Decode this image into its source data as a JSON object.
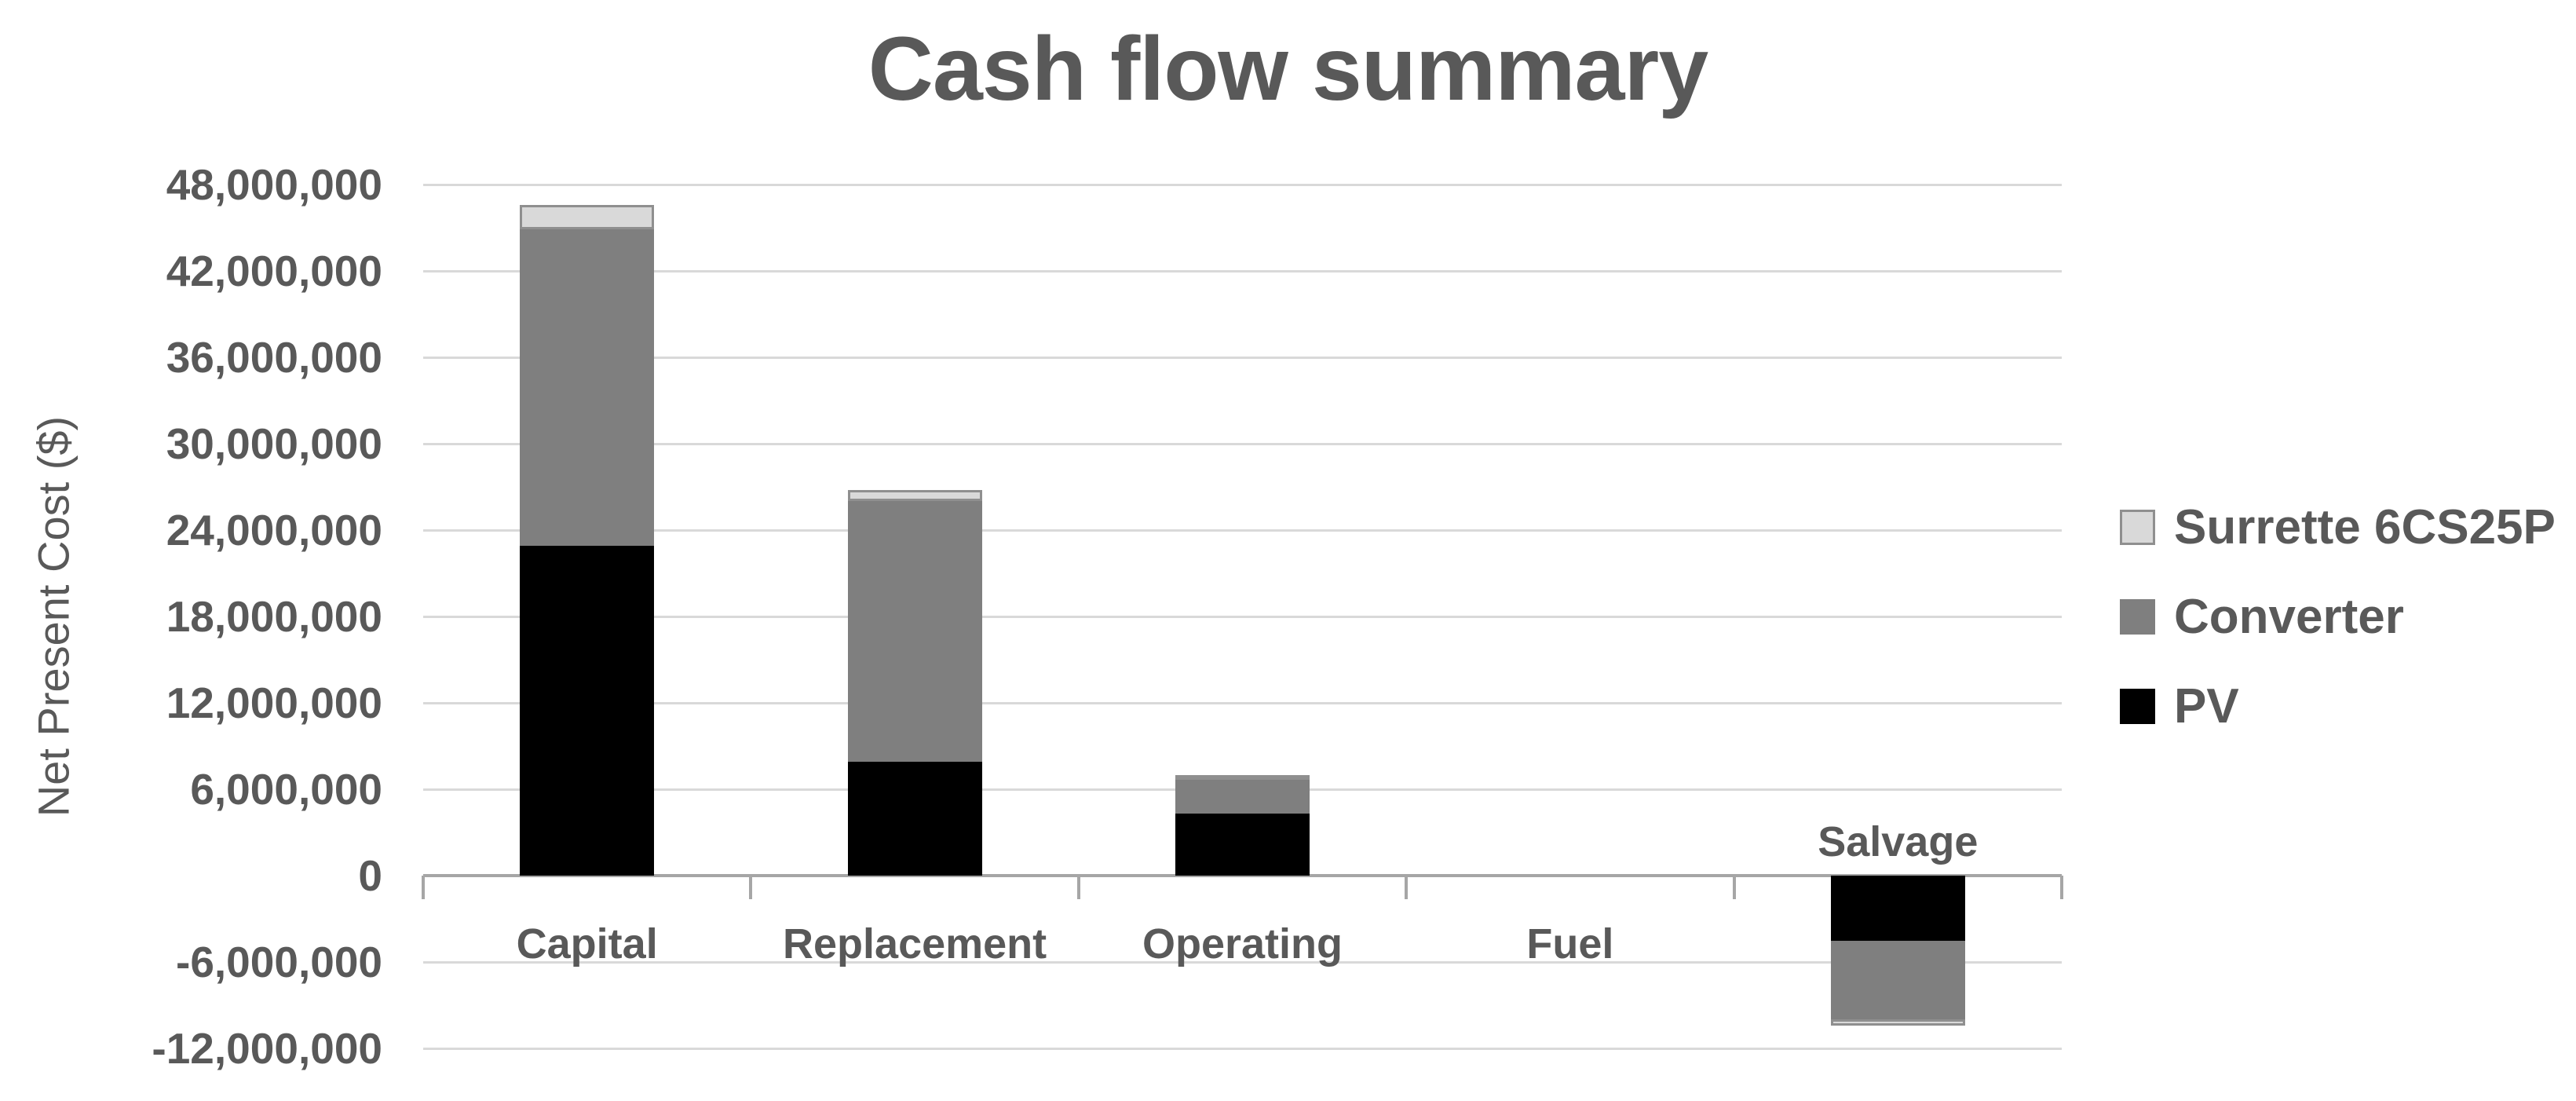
{
  "chart_data": {
    "type": "bar",
    "stacked": true,
    "title": "Cash flow summary",
    "xlabel": "",
    "ylabel": "Net Present Cost ($)",
    "categories": [
      "Capital",
      "Replacement",
      "Operating",
      "Fuel",
      "Salvage"
    ],
    "series": [
      {
        "name": "PV",
        "color": "#000000",
        "bordered": false,
        "values": [
          22900000,
          7900000,
          4300000,
          0,
          -4500000
        ]
      },
      {
        "name": "Converter",
        "color": "#7f7f7f",
        "bordered": false,
        "values": [
          22000000,
          18100000,
          2400000,
          0,
          -5500000
        ]
      },
      {
        "name": "Surrette 6CS25P",
        "color": "#d9d9d9",
        "bordered": true,
        "values": [
          1700000,
          800000,
          300000,
          0,
          -400000
        ]
      }
    ],
    "category_totals": [
      46600000,
      26800000,
      7000000,
      0,
      -10400000
    ],
    "legend": {
      "position": "right",
      "entries": [
        {
          "label": "Surrette 6CS25P",
          "color": "#d9d9d9",
          "bordered": true
        },
        {
          "label": "Converter",
          "color": "#7f7f7f",
          "bordered": false
        },
        {
          "label": "PV",
          "color": "#000000",
          "bordered": false
        }
      ]
    },
    "y_axis": {
      "ylim": [
        -12000000,
        48000000
      ],
      "grid": true,
      "ticks": [
        {
          "label": "48,000,000",
          "value": 48000000
        },
        {
          "label": "42,000,000",
          "value": 42000000
        },
        {
          "label": "36,000,000",
          "value": 36000000
        },
        {
          "label": "30,000,000",
          "value": 30000000
        },
        {
          "label": "24,000,000",
          "value": 24000000
        },
        {
          "label": "18,000,000",
          "value": 18000000
        },
        {
          "label": "12,000,000",
          "value": 12000000
        },
        {
          "label": "6,000,000",
          "value": 6000000
        },
        {
          "label": "0",
          "value": 0
        },
        {
          "label": "-6,000,000",
          "value": -6000000
        },
        {
          "label": "-12,000,000",
          "value": -12000000
        }
      ]
    },
    "colors": {
      "text": "#595959",
      "gridline": "#d9d9d9",
      "axis_line": "#a6a6a6",
      "background": "#ffffff"
    }
  }
}
